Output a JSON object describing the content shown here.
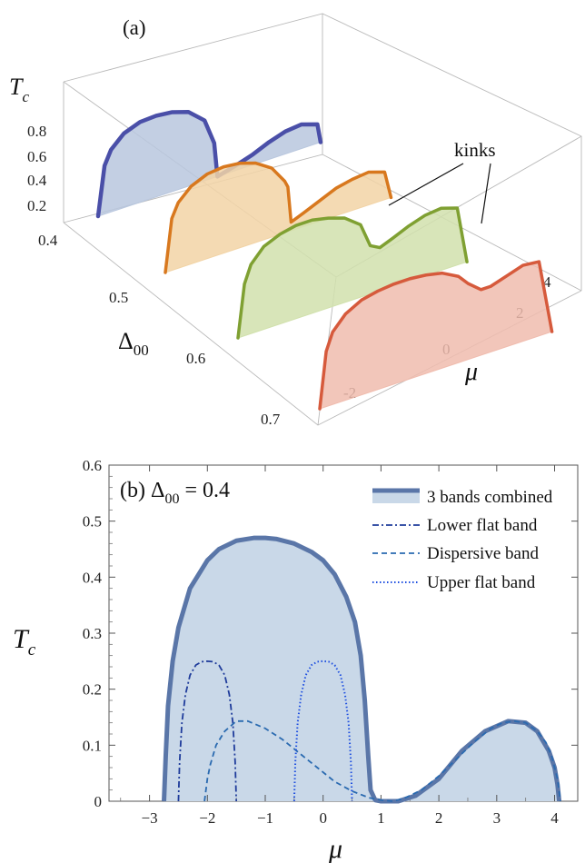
{
  "chart_data": [
    {
      "panel": "(a)",
      "type": "area",
      "subtype": "3d-stacked-curves",
      "z_label": "T_c",
      "depth_label": "Δ00",
      "x_label": "μ",
      "z_ticks": [
        "0.2",
        "0.4",
        "0.6",
        "0.8"
      ],
      "depth_ticks": [
        "0.4",
        "0.5",
        "0.6",
        "0.7"
      ],
      "x_ticks": [
        "-2",
        "0",
        "2",
        "4"
      ],
      "annotation": "kinks",
      "colors": [
        "#4a4fa8",
        "#d8781e",
        "#7fa032",
        "#d65a3c"
      ],
      "fill_colors": [
        "#b9c7de",
        "#f2d4a6",
        "#d1e1ad",
        "#f0bcae"
      ],
      "series": [
        {
          "delta00": 0.4,
          "x": [
            -2.8,
            -2.6,
            -2.4,
            -2.0,
            -1.5,
            -1.0,
            -0.5,
            0.0,
            0.5,
            0.8,
            0.9,
            1.5,
            2.0,
            2.5,
            3.0,
            3.5,
            4.0,
            4.1
          ],
          "y": [
            0.0,
            0.28,
            0.36,
            0.43,
            0.465,
            0.47,
            0.46,
            0.43,
            0.35,
            0.2,
            0.0,
            0.03,
            0.06,
            0.1,
            0.13,
            0.14,
            0.11,
            0.0
          ]
        },
        {
          "delta00": 0.5,
          "x": [
            -2.8,
            -2.6,
            -2.4,
            -2.0,
            -1.5,
            -1.0,
            -0.5,
            0.0,
            0.5,
            0.9,
            1.0,
            1.1,
            1.5,
            2.0,
            2.5,
            3.0,
            3.5,
            4.0,
            4.2
          ],
          "y": [
            0.0,
            0.3,
            0.38,
            0.45,
            0.49,
            0.5,
            0.49,
            0.46,
            0.4,
            0.3,
            0.26,
            0.05,
            0.08,
            0.12,
            0.16,
            0.18,
            0.19,
            0.16,
            0.0
          ]
        },
        {
          "delta00": 0.6,
          "x": [
            -2.8,
            -2.6,
            -2.4,
            -2.0,
            -1.5,
            -1.0,
            -0.5,
            0.0,
            0.5,
            1.0,
            1.3,
            1.6,
            2.0,
            2.5,
            3.0,
            3.5,
            4.0,
            4.3
          ],
          "y": [
            0.0,
            0.3,
            0.4,
            0.48,
            0.52,
            0.54,
            0.54,
            0.52,
            0.49,
            0.42,
            0.28,
            0.25,
            0.28,
            0.32,
            0.35,
            0.36,
            0.33,
            0.0
          ]
        },
        {
          "delta00": 0.7,
          "x": [
            -2.8,
            -2.6,
            -2.4,
            -2.0,
            -1.5,
            -1.0,
            -0.5,
            0.0,
            0.5,
            1.0,
            1.5,
            1.8,
            2.2,
            2.5,
            3.0,
            3.5,
            4.0,
            4.4
          ],
          "y": [
            0.0,
            0.32,
            0.42,
            0.5,
            0.55,
            0.57,
            0.58,
            0.58,
            0.57,
            0.55,
            0.5,
            0.44,
            0.38,
            0.38,
            0.41,
            0.44,
            0.43,
            0.0
          ]
        }
      ]
    },
    {
      "panel": "(b)",
      "type": "line",
      "title": "Δ00 = 0.4",
      "xlabel": "μ",
      "ylabel": "T_c",
      "xlim": [
        -3.7,
        4.4
      ],
      "ylim": [
        0,
        0.6
      ],
      "x_ticks": [
        -3,
        -2,
        -1,
        0,
        1,
        2,
        3,
        4
      ],
      "y_ticks": [
        0,
        0.1,
        0.2,
        0.3,
        0.4,
        0.5,
        0.6
      ],
      "legend_position": "top-right",
      "series": [
        {
          "name": "3 bands combined",
          "style": "thick-solid-filled",
          "color": "#5a76a8",
          "fill": "#c9d8e8",
          "x": [
            -2.75,
            -2.72,
            -2.68,
            -2.6,
            -2.5,
            -2.3,
            -2.0,
            -1.8,
            -1.5,
            -1.2,
            -1.0,
            -0.8,
            -0.5,
            -0.2,
            0.0,
            0.2,
            0.4,
            0.55,
            0.65,
            0.72,
            0.78,
            0.82,
            0.9,
            1.0,
            1.3,
            1.6,
            2.0,
            2.4,
            2.8,
            3.2,
            3.5,
            3.7,
            3.9,
            4.0,
            4.05,
            4.08
          ],
          "y": [
            0.0,
            0.08,
            0.17,
            0.25,
            0.31,
            0.38,
            0.43,
            0.45,
            0.465,
            0.47,
            0.47,
            0.468,
            0.46,
            0.445,
            0.43,
            0.405,
            0.365,
            0.32,
            0.26,
            0.18,
            0.08,
            0.02,
            0.002,
            0.0,
            0.0,
            0.01,
            0.04,
            0.09,
            0.125,
            0.143,
            0.14,
            0.125,
            0.09,
            0.06,
            0.03,
            0.0
          ]
        },
        {
          "name": "Lower flat band",
          "style": "dash-dot",
          "color": "#1f3c9b",
          "x": [
            -2.5,
            -2.48,
            -2.44,
            -2.38,
            -2.3,
            -2.2,
            -2.1,
            -2.0,
            -1.9,
            -1.8,
            -1.7,
            -1.62,
            -1.56,
            -1.52,
            -1.5
          ],
          "y": [
            0.0,
            0.07,
            0.14,
            0.19,
            0.225,
            0.243,
            0.249,
            0.25,
            0.249,
            0.243,
            0.225,
            0.19,
            0.14,
            0.07,
            0.0
          ]
        },
        {
          "name": "Dispersive band",
          "style": "dashed",
          "color": "#2a6ab0",
          "x": [
            -2.05,
            -2.0,
            -1.95,
            -1.85,
            -1.7,
            -1.5,
            -1.3,
            -1.0,
            -0.7,
            -0.4,
            -0.1,
            0.2,
            0.5,
            0.8,
            1.0,
            1.2,
            1.4,
            1.7,
            2.0,
            2.3,
            2.6,
            2.9,
            3.1,
            3.3,
            3.5,
            3.7,
            3.85,
            3.95,
            4.05,
            4.1
          ],
          "y": [
            0.0,
            0.04,
            0.065,
            0.1,
            0.125,
            0.143,
            0.143,
            0.13,
            0.11,
            0.085,
            0.06,
            0.035,
            0.018,
            0.006,
            0.002,
            0.0,
            0.005,
            0.02,
            0.045,
            0.075,
            0.105,
            0.13,
            0.14,
            0.143,
            0.14,
            0.125,
            0.105,
            0.08,
            0.04,
            0.0
          ]
        },
        {
          "name": "Upper flat band",
          "style": "dotted",
          "color": "#1e4fe0",
          "x": [
            -0.5,
            -0.48,
            -0.44,
            -0.38,
            -0.3,
            -0.2,
            -0.1,
            0.0,
            0.1,
            0.2,
            0.3,
            0.38,
            0.44,
            0.48,
            0.5
          ],
          "y": [
            0.0,
            0.07,
            0.14,
            0.19,
            0.225,
            0.243,
            0.249,
            0.25,
            0.249,
            0.243,
            0.225,
            0.19,
            0.14,
            0.07,
            0.0
          ]
        }
      ]
    }
  ]
}
